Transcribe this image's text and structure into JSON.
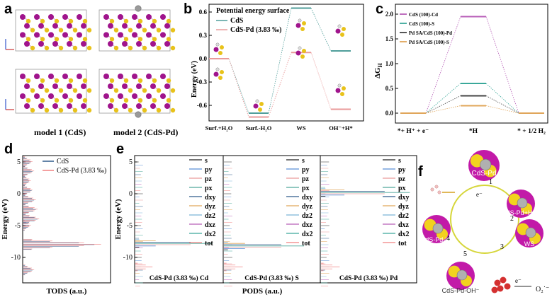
{
  "figure": {
    "panels": {
      "a": {
        "label": "a",
        "captions": [
          "model 1 (CdS)",
          "model 2 (CdS-Pd)"
        ],
        "atom_colors": {
          "Cd": "#a0148c",
          "S": "#e8c21a",
          "Pd": "#9a9a9a"
        }
      },
      "b": {
        "label": "b",
        "title": "Potential energy surface",
        "legend": [
          "CdS",
          "CdS-Pd (3.83 ‰)"
        ],
        "ylabel": "Energy (eV)",
        "yticks": [
          "0.6",
          "0.3",
          "0.0",
          "-0.3",
          "-0.6"
        ],
        "xticks": [
          "Surf.+H₂O",
          "Surf.-H₂O",
          "WS",
          "OH⁻+H*"
        ]
      },
      "c": {
        "label": "c",
        "legend": [
          "CdS (100)-Cd",
          "CdS (100)-S",
          "Pd SA/CdS (100)-Pd",
          "Pd SA/CdS (100)-S"
        ],
        "ylabel": "ΔG",
        "ylabel_sub": "H",
        "yticks": [
          "2.0",
          "1.5",
          "1.0",
          "0.5",
          "0.0"
        ],
        "xticks": [
          "*+ H⁺ + e⁻",
          "*H",
          "* + 1/2 H₂"
        ]
      },
      "d": {
        "label": "d",
        "legend": [
          "CdS",
          "CdS-Pd (3.83 ‰)"
        ],
        "ylabel": "Energy (eV)",
        "yticks": [
          "5",
          "0",
          "-5",
          "-10"
        ],
        "xlabel": "TODS (a.u.)"
      },
      "e": {
        "label": "e",
        "ylabel": "Energy (eV)",
        "yticks": [
          "5",
          "0",
          "-5",
          "-10"
        ],
        "xlabel": "PODS (a.u.)",
        "orbitals": [
          "s",
          "py",
          "pz",
          "px",
          "dxy",
          "dyz",
          "dz2",
          "dxz",
          "dx2",
          "tot"
        ],
        "subpanel_titles": [
          "CdS-Pd (3.83 ‰) Cd",
          "CdS-Pd (3.83 ‰) S",
          "CdS-Pd (3.83 ‰) Pd"
        ]
      },
      "f": {
        "label": "f",
        "states": [
          "CdS-Pd",
          "CdS-Pd+H₂O",
          "WS",
          "CdS-Pd-OH⁻",
          "CdS-Pd-H*"
        ],
        "steps": [
          "1",
          "2",
          "3",
          "4",
          "5"
        ],
        "electron": "e⁻",
        "superoxide": "O₂˙⁻"
      }
    },
    "colors": {
      "cds_line": "#4f9e9a",
      "cdspd_line": "#e99a9a",
      "cds_dos": "#2f5a8a",
      "cdspd_dos": "#f08080",
      "c_cd": "#b85fb8",
      "c_s": "#3aa89a",
      "c_pd_pd": "#444444",
      "c_pd_s": "#e0a65a"
    }
  },
  "chart_data": [
    {
      "type": "line",
      "title": "Potential energy surface",
      "ylabel": "Energy (eV)",
      "ylim": [
        -0.8,
        0.7
      ],
      "categories": [
        "Surf.+H2O",
        "Surf.-H2O",
        "WS",
        "OH-+H*"
      ],
      "series": [
        {
          "name": "CdS",
          "values": [
            0.0,
            -0.7,
            0.65,
            0.1
          ]
        },
        {
          "name": "CdS-Pd (3.83 ‰)",
          "values": [
            0.0,
            -0.75,
            0.08,
            -0.65
          ]
        }
      ]
    },
    {
      "type": "line",
      "ylabel": "ΔGH",
      "ylim": [
        -0.2,
        2.2
      ],
      "categories": [
        "*+H++e-",
        "*H",
        "*+1/2H2"
      ],
      "series": [
        {
          "name": "CdS (100)-Cd",
          "values": [
            0.0,
            1.95,
            0.0
          ]
        },
        {
          "name": "CdS (100)-S",
          "values": [
            0.0,
            0.6,
            0.0
          ]
        },
        {
          "name": "Pd SA/CdS (100)-Pd",
          "values": [
            0.0,
            0.35,
            0.0
          ]
        },
        {
          "name": "Pd SA/CdS (100)-S",
          "values": [
            0.0,
            0.15,
            0.0
          ]
        }
      ]
    },
    {
      "type": "line",
      "ylabel": "Energy (eV)",
      "xlabel": "TODS (a.u.)",
      "ylim": [
        -14,
        6
      ],
      "series": [
        {
          "name": "CdS",
          "energies": [
            5,
            3.5,
            2,
            0.5,
            -1,
            -2.5,
            -4,
            -5,
            -8,
            -12
          ],
          "dos": [
            0.4,
            0.5,
            0.3,
            0.45,
            0.6,
            0.7,
            0.8,
            0.3,
            4.2,
            0.5
          ]
        },
        {
          "name": "CdS-Pd (3.83 ‰)",
          "energies": [
            5,
            3.5,
            2,
            0.5,
            -1,
            -2.5,
            -4,
            -5,
            -8,
            -12
          ],
          "dos": [
            0.5,
            0.6,
            0.4,
            0.5,
            0.7,
            0.8,
            0.9,
            0.4,
            4.6,
            0.6
          ]
        }
      ]
    }
  ]
}
